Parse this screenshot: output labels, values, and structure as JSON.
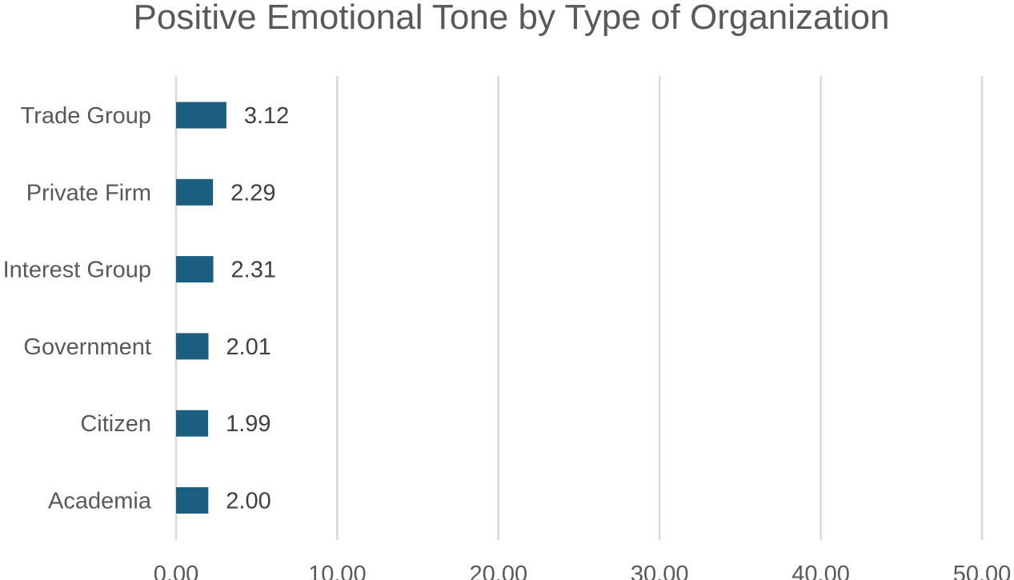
{
  "chart_data": {
    "type": "bar",
    "orientation": "horizontal",
    "title": "Positive Emotional Tone by Type of Organization",
    "categories": [
      "Trade Group",
      "Private Firm",
      "Interest Group",
      "Government",
      "Citizen",
      "Academia"
    ],
    "values": [
      3.12,
      2.29,
      2.31,
      2.01,
      1.99,
      2.0
    ],
    "data_labels": [
      "3.12",
      "2.29",
      "2.31",
      "2.01",
      "1.99",
      "2.00"
    ],
    "xlim": [
      0,
      50
    ],
    "x_ticks": [
      0,
      10,
      20,
      30,
      40,
      50
    ],
    "x_tick_labels": [
      "0.00",
      "10.00",
      "20.00",
      "30.00",
      "40.00",
      "50.00"
    ],
    "xlabel": "",
    "ylabel": "",
    "grid": "vertical",
    "legend": "none",
    "bar_color": "#1b5e80"
  }
}
